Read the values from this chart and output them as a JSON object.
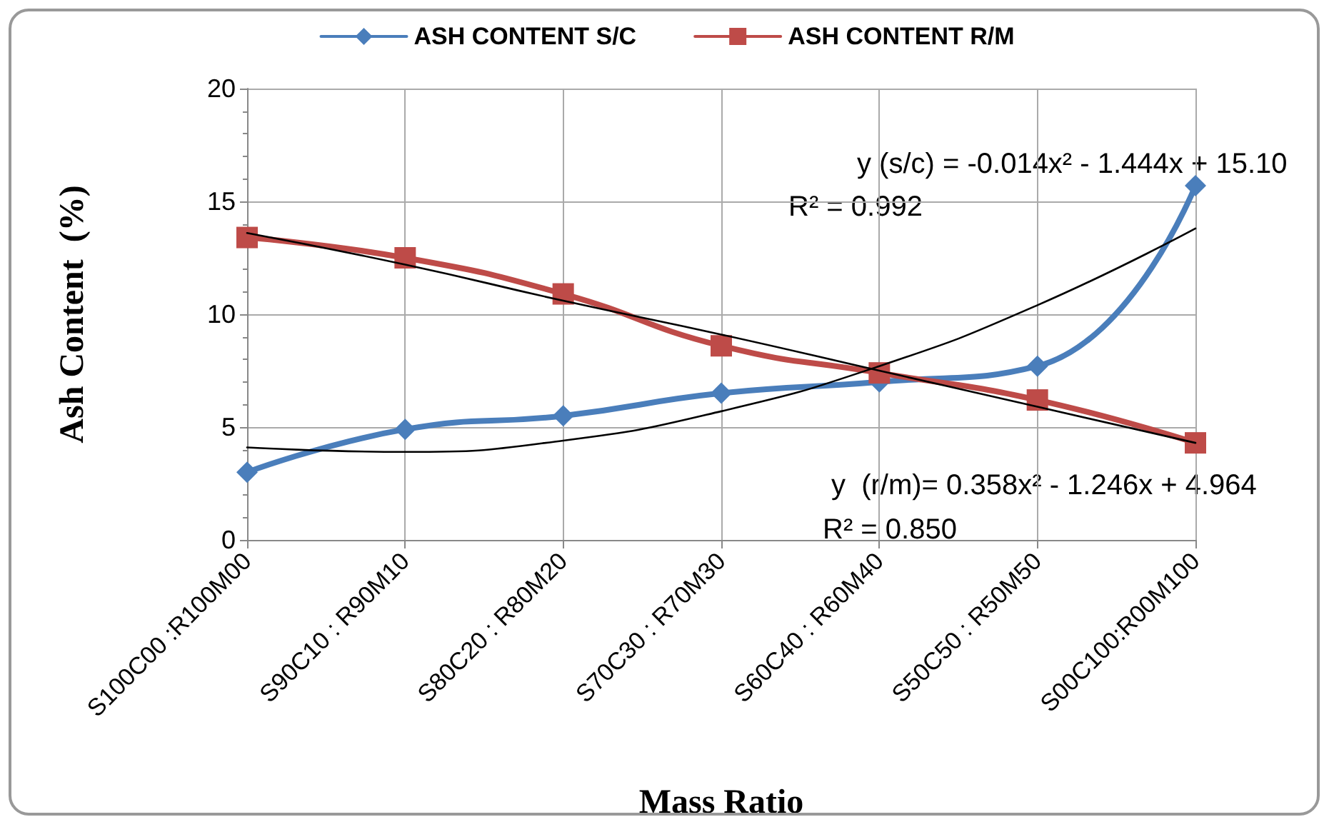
{
  "chart_data": {
    "type": "line",
    "xlabel": "Mass Ratio",
    "ylabel": "Ash Content  (%)",
    "categories": [
      "S100C00 :R100M00",
      "S90C10 : R90M10",
      "S80C20 : R80M20",
      "S70C30 : R70M30",
      "S60C40 : R60M40",
      "S50C50 : R50M50",
      "S00C100:R00M100"
    ],
    "series": [
      {
        "name": "ASH CONTENT S/C",
        "color": "#4a7ebb",
        "marker": "diamond",
        "values": [
          3.0,
          4.9,
          5.5,
          6.5,
          7.0,
          7.7,
          15.7
        ]
      },
      {
        "name": "ASH CONTENT R/M",
        "color": "#be4b48",
        "marker": "square",
        "values": [
          13.4,
          12.5,
          10.9,
          8.6,
          7.4,
          6.2,
          4.3
        ]
      },
      {
        "color": "#000000",
        "marker": "none",
        "values": [
          13.6,
          12.2,
          10.6,
          9.1,
          7.5,
          5.9,
          4.3
        ]
      },
      {
        "color": "#000000",
        "marker": "none",
        "values": [
          4.1,
          3.9,
          4.4,
          5.7,
          7.7,
          10.4,
          13.8
        ]
      }
    ],
    "ylim": [
      0,
      20
    ],
    "yticks": [
      0,
      5,
      10,
      15,
      20
    ],
    "grid": true,
    "legend": "top",
    "annotations": [
      "y (s/c) = -0.014x² - 1.444x + 15.10",
      "R² = 0.992",
      "y  (r/m)= 0.358x² - 1.246x + 4.964",
      "R² = 0.850"
    ]
  }
}
